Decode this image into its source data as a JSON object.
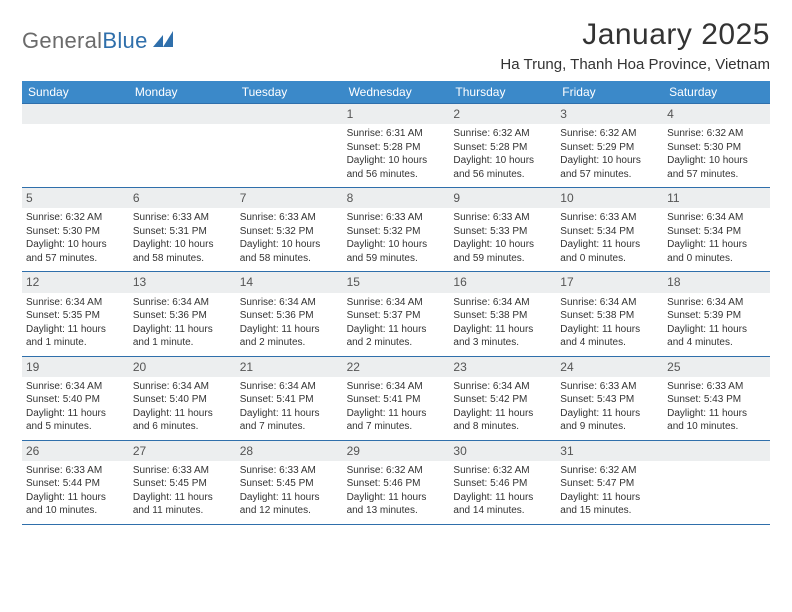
{
  "logo": {
    "text1": "General",
    "text2": "Blue"
  },
  "title": "January 2025",
  "location": "Ha Trung, Thanh Hoa Province, Vietnam",
  "colors": {
    "header_bg": "#3b89c9",
    "header_text": "#ffffff",
    "rule": "#2f6fab",
    "daynum_bg": "#eceeef",
    "daynum_text": "#555555",
    "text": "#333333",
    "logo_gray": "#6b6b6b",
    "logo_blue": "#2f6fab",
    "bg": "#ffffff"
  },
  "typography": {
    "title_fontsize": 30,
    "location_fontsize": 15,
    "weekday_fontsize": 12,
    "daynum_fontsize": 12,
    "info_fontsize": 10,
    "logo_fontsize": 22
  },
  "weekdays": [
    "Sunday",
    "Monday",
    "Tuesday",
    "Wednesday",
    "Thursday",
    "Friday",
    "Saturday"
  ],
  "weeks": [
    [
      null,
      null,
      null,
      {
        "n": "1",
        "sunrise": "6:31 AM",
        "sunset": "5:28 PM",
        "daylight": "10 hours and 56 minutes."
      },
      {
        "n": "2",
        "sunrise": "6:32 AM",
        "sunset": "5:28 PM",
        "daylight": "10 hours and 56 minutes."
      },
      {
        "n": "3",
        "sunrise": "6:32 AM",
        "sunset": "5:29 PM",
        "daylight": "10 hours and 57 minutes."
      },
      {
        "n": "4",
        "sunrise": "6:32 AM",
        "sunset": "5:30 PM",
        "daylight": "10 hours and 57 minutes."
      }
    ],
    [
      {
        "n": "5",
        "sunrise": "6:32 AM",
        "sunset": "5:30 PM",
        "daylight": "10 hours and 57 minutes."
      },
      {
        "n": "6",
        "sunrise": "6:33 AM",
        "sunset": "5:31 PM",
        "daylight": "10 hours and 58 minutes."
      },
      {
        "n": "7",
        "sunrise": "6:33 AM",
        "sunset": "5:32 PM",
        "daylight": "10 hours and 58 minutes."
      },
      {
        "n": "8",
        "sunrise": "6:33 AM",
        "sunset": "5:32 PM",
        "daylight": "10 hours and 59 minutes."
      },
      {
        "n": "9",
        "sunrise": "6:33 AM",
        "sunset": "5:33 PM",
        "daylight": "10 hours and 59 minutes."
      },
      {
        "n": "10",
        "sunrise": "6:33 AM",
        "sunset": "5:34 PM",
        "daylight": "11 hours and 0 minutes."
      },
      {
        "n": "11",
        "sunrise": "6:34 AM",
        "sunset": "5:34 PM",
        "daylight": "11 hours and 0 minutes."
      }
    ],
    [
      {
        "n": "12",
        "sunrise": "6:34 AM",
        "sunset": "5:35 PM",
        "daylight": "11 hours and 1 minute."
      },
      {
        "n": "13",
        "sunrise": "6:34 AM",
        "sunset": "5:36 PM",
        "daylight": "11 hours and 1 minute."
      },
      {
        "n": "14",
        "sunrise": "6:34 AM",
        "sunset": "5:36 PM",
        "daylight": "11 hours and 2 minutes."
      },
      {
        "n": "15",
        "sunrise": "6:34 AM",
        "sunset": "5:37 PM",
        "daylight": "11 hours and 2 minutes."
      },
      {
        "n": "16",
        "sunrise": "6:34 AM",
        "sunset": "5:38 PM",
        "daylight": "11 hours and 3 minutes."
      },
      {
        "n": "17",
        "sunrise": "6:34 AM",
        "sunset": "5:38 PM",
        "daylight": "11 hours and 4 minutes."
      },
      {
        "n": "18",
        "sunrise": "6:34 AM",
        "sunset": "5:39 PM",
        "daylight": "11 hours and 4 minutes."
      }
    ],
    [
      {
        "n": "19",
        "sunrise": "6:34 AM",
        "sunset": "5:40 PM",
        "daylight": "11 hours and 5 minutes."
      },
      {
        "n": "20",
        "sunrise": "6:34 AM",
        "sunset": "5:40 PM",
        "daylight": "11 hours and 6 minutes."
      },
      {
        "n": "21",
        "sunrise": "6:34 AM",
        "sunset": "5:41 PM",
        "daylight": "11 hours and 7 minutes."
      },
      {
        "n": "22",
        "sunrise": "6:34 AM",
        "sunset": "5:41 PM",
        "daylight": "11 hours and 7 minutes."
      },
      {
        "n": "23",
        "sunrise": "6:34 AM",
        "sunset": "5:42 PM",
        "daylight": "11 hours and 8 minutes."
      },
      {
        "n": "24",
        "sunrise": "6:33 AM",
        "sunset": "5:43 PM",
        "daylight": "11 hours and 9 minutes."
      },
      {
        "n": "25",
        "sunrise": "6:33 AM",
        "sunset": "5:43 PM",
        "daylight": "11 hours and 10 minutes."
      }
    ],
    [
      {
        "n": "26",
        "sunrise": "6:33 AM",
        "sunset": "5:44 PM",
        "daylight": "11 hours and 10 minutes."
      },
      {
        "n": "27",
        "sunrise": "6:33 AM",
        "sunset": "5:45 PM",
        "daylight": "11 hours and 11 minutes."
      },
      {
        "n": "28",
        "sunrise": "6:33 AM",
        "sunset": "5:45 PM",
        "daylight": "11 hours and 12 minutes."
      },
      {
        "n": "29",
        "sunrise": "6:32 AM",
        "sunset": "5:46 PM",
        "daylight": "11 hours and 13 minutes."
      },
      {
        "n": "30",
        "sunrise": "6:32 AM",
        "sunset": "5:46 PM",
        "daylight": "11 hours and 14 minutes."
      },
      {
        "n": "31",
        "sunrise": "6:32 AM",
        "sunset": "5:47 PM",
        "daylight": "11 hours and 15 minutes."
      },
      null
    ]
  ],
  "labels": {
    "sunrise": "Sunrise:",
    "sunset": "Sunset:",
    "daylight": "Daylight:"
  }
}
